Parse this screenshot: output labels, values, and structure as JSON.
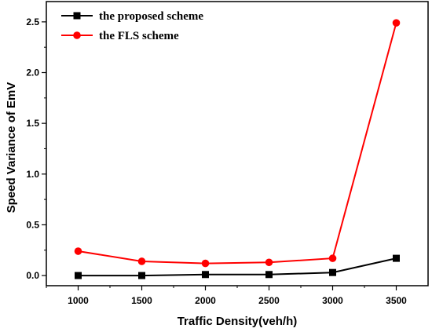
{
  "chart_data": {
    "type": "line",
    "xlabel": "Traffic Density(veh/h)",
    "ylabel": "Speed Variance of EmV",
    "x": [
      1000,
      1500,
      2000,
      2500,
      3000,
      3500
    ],
    "xlim": [
      750,
      3750
    ],
    "ylim": [
      -0.1,
      2.7
    ],
    "xticks": [
      "1000",
      "1500",
      "2000",
      "2500",
      "3000",
      "3500"
    ],
    "yticks": [
      "0.0",
      "0.5",
      "1.0",
      "1.5",
      "2.0",
      "2.5"
    ],
    "grid": false,
    "legend_position": "top-left",
    "series": [
      {
        "name": "the proposed scheme",
        "color": "#000000",
        "marker": "square",
        "values": [
          0.0,
          0.0,
          0.01,
          0.01,
          0.03,
          0.17
        ]
      },
      {
        "name": "the FLS scheme",
        "color": "#ff0000",
        "marker": "circle",
        "values": [
          0.24,
          0.14,
          0.12,
          0.13,
          0.17,
          2.49
        ]
      }
    ]
  }
}
